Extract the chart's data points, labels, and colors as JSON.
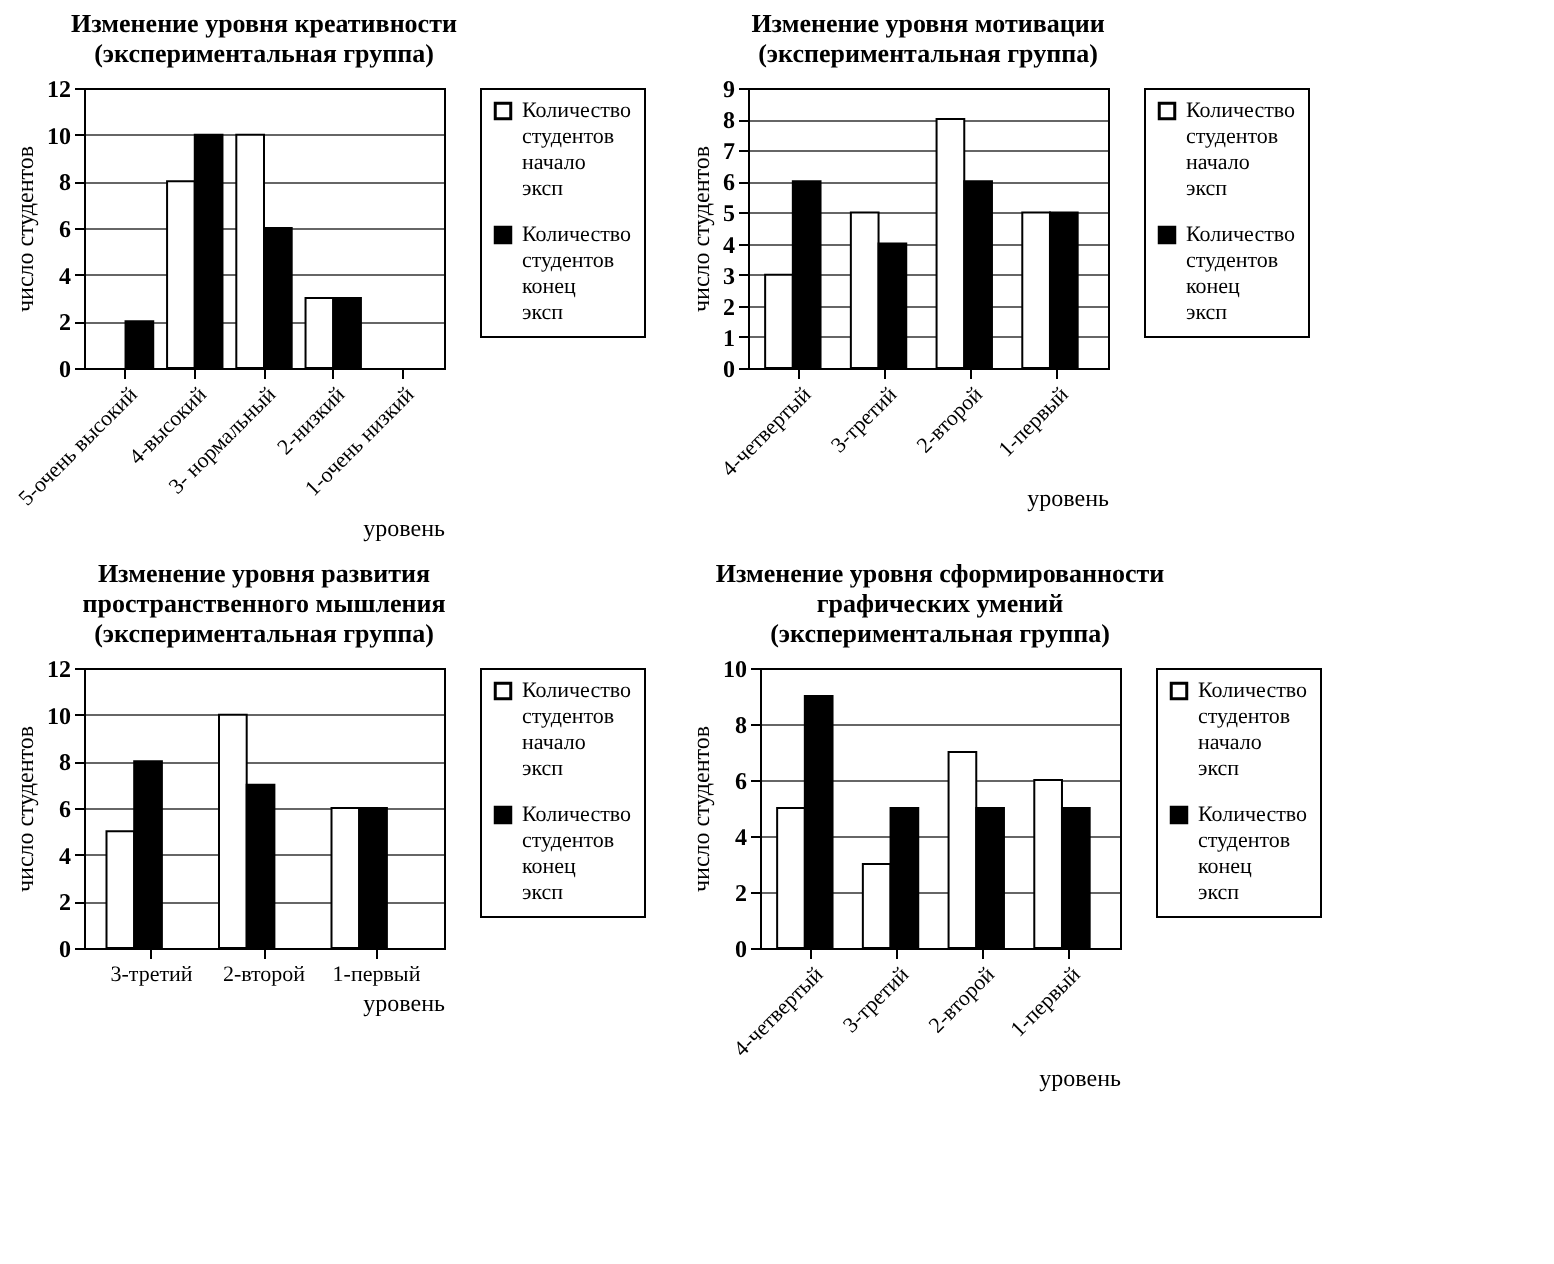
{
  "chart_data": [
    {
      "type": "bar",
      "title": "Изменение уровня креативности\n(экспериментальная группа)",
      "xlabel": "уровень",
      "ylabel": "число студентов",
      "categories": [
        "5-очень высокий",
        "4-высокий",
        "3- нормальный",
        "2-низкий",
        "1-очень низкий"
      ],
      "series": [
        {
          "name": "Количество студентов начало эксп",
          "color": "#ffffff",
          "values": [
            null,
            8,
            10,
            3,
            null
          ]
        },
        {
          "name": "Количество студентов конец эксп",
          "color": "#000000",
          "values": [
            2,
            10,
            6,
            3,
            null
          ]
        }
      ],
      "ylim": [
        0,
        12
      ],
      "yticks": [
        0,
        2,
        4,
        6,
        8,
        10,
        12
      ],
      "grid": "y",
      "legend": "right"
    },
    {
      "type": "bar",
      "title": "Изменение уровня мотивации\n(экспериментальная группа)",
      "xlabel": "уровень",
      "ylabel": "число студентов",
      "categories": [
        "4-четвертый",
        "3-третий",
        "2-второй",
        "1-первый"
      ],
      "series": [
        {
          "name": "Количество студентов начало эксп",
          "color": "#ffffff",
          "values": [
            3,
            5,
            8,
            5
          ]
        },
        {
          "name": "Количество студентов конец эксп",
          "color": "#000000",
          "values": [
            6,
            4,
            6,
            5
          ]
        }
      ],
      "ylim": [
        0,
        9
      ],
      "yticks": [
        0,
        1,
        2,
        3,
        4,
        5,
        6,
        7,
        8,
        9
      ],
      "grid": "y",
      "legend": "right"
    },
    {
      "type": "bar",
      "title": "Изменение уровня развития\nпространственного мышления\n(экспериментальная группа)",
      "xlabel": "уровень",
      "ylabel": "число студентов",
      "categories": [
        "3-третий",
        "2-второй",
        "1-первый"
      ],
      "series": [
        {
          "name": "Количество студентов начало эксп",
          "color": "#ffffff",
          "values": [
            5,
            10,
            6
          ]
        },
        {
          "name": "Количество студентов конец эксп",
          "color": "#000000",
          "values": [
            8,
            7,
            6
          ]
        }
      ],
      "ylim": [
        0,
        12
      ],
      "yticks": [
        0,
        2,
        4,
        6,
        8,
        10,
        12
      ],
      "grid": "y",
      "legend": "right"
    },
    {
      "type": "bar",
      "title": "Изменение уровня сформированности\nграфических умений\n(экспериментальная группа)",
      "xlabel": "уровень",
      "ylabel": "число студентов",
      "categories": [
        "4-четвертый",
        "3-третий",
        "2-второй",
        "1-первый"
      ],
      "series": [
        {
          "name": "Количество студентов начало эксп",
          "color": "#ffffff",
          "values": [
            5,
            3,
            7,
            6
          ]
        },
        {
          "name": "Количество студентов конец эксп",
          "color": "#000000",
          "values": [
            9,
            5,
            5,
            5
          ]
        }
      ],
      "ylim": [
        0,
        10
      ],
      "yticks": [
        0,
        2,
        4,
        6,
        8,
        10
      ],
      "grid": "y",
      "legend": "right"
    }
  ]
}
